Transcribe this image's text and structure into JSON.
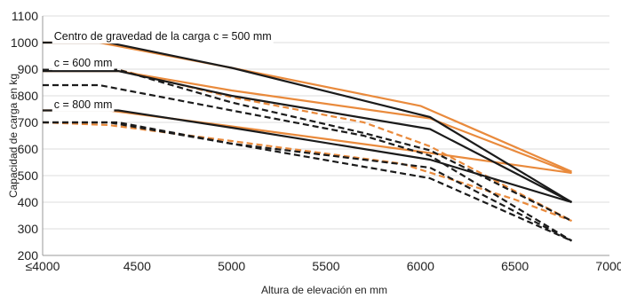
{
  "chart_data": {
    "type": "line",
    "title": "",
    "xlabel": "Altura de elevación en mm",
    "ylabel": "Capacidad de carga en kg",
    "xlim": [
      4000,
      7000
    ],
    "ylim": [
      200,
      1100
    ],
    "x_ticks": [
      4000,
      4500,
      5000,
      5500,
      6000,
      6500,
      7000
    ],
    "x_tick_labels": [
      "≤4000",
      "4500",
      "5000",
      "5500",
      "6000",
      "6500",
      "7000"
    ],
    "y_ticks": [
      200,
      300,
      400,
      500,
      600,
      700,
      800,
      900,
      1000,
      1100
    ],
    "y_tick_labels": [
      "200",
      "300",
      "400",
      "500",
      "600",
      "700",
      "800",
      "900",
      "1000",
      "1100"
    ],
    "grid": "horizontal",
    "colors": {
      "orange": "#e98a3c",
      "black": "#1b1b1b"
    },
    "annotations": [
      {
        "text": "Centro de gravedad de la carga c = 500 mm",
        "x": 4060,
        "y": 1023
      },
      {
        "text": "c = 600 mm",
        "x": 4060,
        "y": 923
      },
      {
        "text": "c = 800 mm",
        "x": 4060,
        "y": 767
      }
    ],
    "series": [
      {
        "color": "orange",
        "dash": "solid",
        "points": [
          [
            4000,
            1000
          ],
          [
            4300,
            1000
          ],
          [
            5000,
            905
          ],
          [
            6000,
            762
          ],
          [
            6800,
            515
          ]
        ]
      },
      {
        "color": "black",
        "dash": "solid",
        "points": [
          [
            4000,
            1000
          ],
          [
            4350,
            1000
          ],
          [
            5000,
            905
          ],
          [
            6050,
            720
          ],
          [
            6800,
            400
          ]
        ]
      },
      {
        "color": "orange",
        "dash": "solid",
        "points": [
          [
            4000,
            893
          ],
          [
            4400,
            893
          ],
          [
            5000,
            820
          ],
          [
            6050,
            715
          ],
          [
            6800,
            510
          ]
        ]
      },
      {
        "color": "black",
        "dash": "solid",
        "points": [
          [
            4000,
            893
          ],
          [
            4400,
            893
          ],
          [
            5000,
            800
          ],
          [
            6050,
            675
          ],
          [
            6800,
            400
          ]
        ]
      },
      {
        "color": "orange",
        "dash": "solid",
        "points": [
          [
            4000,
            745
          ],
          [
            4350,
            745
          ],
          [
            5000,
            685
          ],
          [
            6050,
            585
          ],
          [
            6800,
            510
          ]
        ]
      },
      {
        "color": "black",
        "dash": "solid",
        "points": [
          [
            4000,
            745
          ],
          [
            4400,
            745
          ],
          [
            5000,
            680
          ],
          [
            6050,
            560
          ],
          [
            6800,
            400
          ]
        ]
      },
      {
        "color": "orange",
        "dash": "dashed",
        "points": [
          [
            4000,
            898
          ],
          [
            4400,
            898
          ],
          [
            5000,
            795
          ],
          [
            5700,
            700
          ],
          [
            6050,
            610
          ],
          [
            6800,
            330
          ]
        ]
      },
      {
        "color": "black",
        "dash": "dashed",
        "points": [
          [
            4000,
            898
          ],
          [
            4400,
            898
          ],
          [
            5000,
            775
          ],
          [
            5700,
            660
          ],
          [
            6050,
            595
          ],
          [
            6800,
            330
          ]
        ]
      },
      {
        "color": "black",
        "dash": "dashed",
        "points": [
          [
            4000,
            840
          ],
          [
            4300,
            840
          ],
          [
            5000,
            745
          ],
          [
            5700,
            650
          ],
          [
            6050,
            575
          ],
          [
            6800,
            255
          ]
        ]
      },
      {
        "color": "orange",
        "dash": "dashed",
        "points": [
          [
            4000,
            700
          ],
          [
            4350,
            690
          ],
          [
            5000,
            630
          ],
          [
            5900,
            545
          ],
          [
            6500,
            410
          ],
          [
            6800,
            330
          ]
        ]
      },
      {
        "color": "black",
        "dash": "dashed",
        "points": [
          [
            4000,
            700
          ],
          [
            4400,
            700
          ],
          [
            5000,
            620
          ],
          [
            6050,
            530
          ],
          [
            6800,
            255
          ]
        ]
      },
      {
        "color": "black",
        "dash": "dashed",
        "points": [
          [
            4000,
            700
          ],
          [
            4350,
            700
          ],
          [
            5000,
            620
          ],
          [
            6050,
            490
          ],
          [
            6800,
            255
          ]
        ]
      }
    ]
  }
}
